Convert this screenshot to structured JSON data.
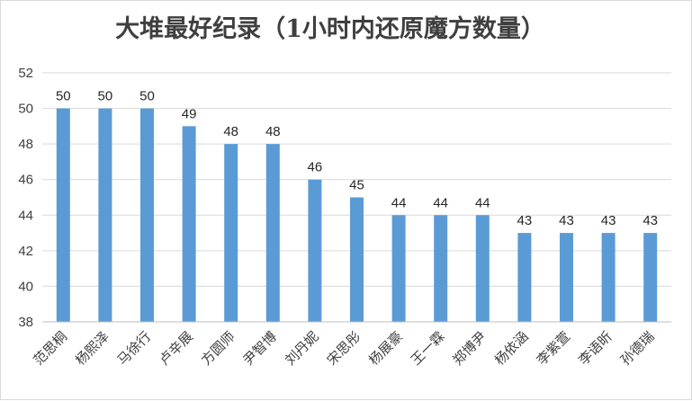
{
  "chart_data": {
    "type": "bar",
    "title": "大堆最好纪录（1小时内还原魔方数量）",
    "categories": [
      "范思桐",
      "杨熙泽",
      "马徐行",
      "卢辛展",
      "方圆师",
      "尹智博",
      "刘丹妮",
      "宋思彤",
      "杨展豪",
      "王一霖",
      "郑博尹",
      "杨依涵",
      "李紫萱",
      "李语昕",
      "孙德瑞"
    ],
    "values": [
      50,
      50,
      50,
      49,
      48,
      48,
      46,
      45,
      44,
      44,
      44,
      43,
      43,
      43,
      43
    ],
    "yticks": [
      "38",
      "40",
      "42",
      "44",
      "46",
      "48",
      "50",
      "52"
    ],
    "ylim": [
      38,
      52
    ],
    "grid": true,
    "bar_color": "#5b9bd5"
  }
}
